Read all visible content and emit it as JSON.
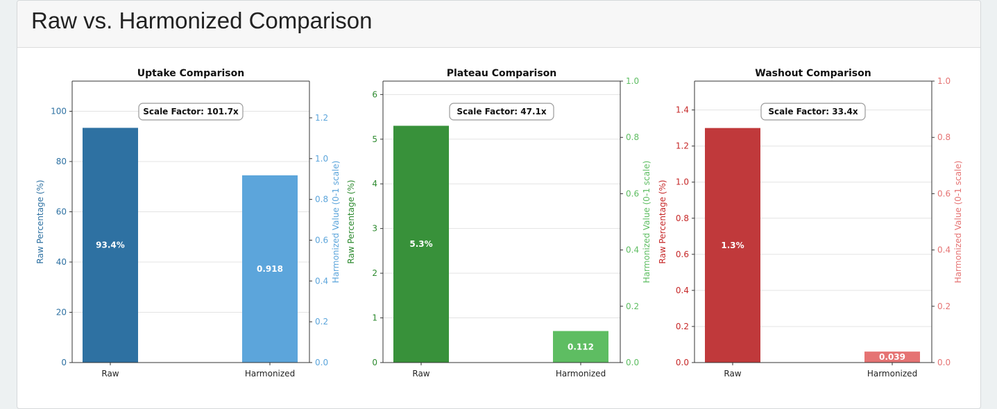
{
  "page": {
    "title": "Raw vs. Harmonized Comparison"
  },
  "chart_data": [
    {
      "type": "bar",
      "title": "Uptake Comparison",
      "categories": [
        "Raw",
        "Harmonized"
      ],
      "ylabel": "Raw Percentage (%)",
      "y2label": "Harmonized Value (0-1 scale)",
      "ylim": [
        0,
        112
      ],
      "y2lim": [
        0,
        1.38
      ],
      "yticks": [
        0,
        20,
        40,
        60,
        80,
        100
      ],
      "y2ticks": [
        0.0,
        0.2,
        0.4,
        0.6,
        0.8,
        1.0,
        1.2
      ],
      "ytick_labels": [
        "0",
        "20",
        "40",
        "60",
        "80",
        "100"
      ],
      "y2tick_labels": [
        "0.0",
        "0.2",
        "0.4",
        "0.6",
        "0.8",
        "1.0",
        "1.2"
      ],
      "raw_value": 93.4,
      "harmonized_value": 0.918,
      "raw_label": "93.4%",
      "harmonized_label": "0.918",
      "annotation": "Scale Factor: 101.7x",
      "grid": true,
      "colors": {
        "raw": "#2e71a2",
        "harmonized": "#5ca5db",
        "raw_axis": "#2e71a2",
        "harmonized_axis": "#5ca5db"
      }
    },
    {
      "type": "bar",
      "title": "Plateau Comparison",
      "categories": [
        "Raw",
        "Harmonized"
      ],
      "ylabel": "Raw Percentage (%)",
      "y2label": "Harmonized Value (0-1 scale)",
      "ylim": [
        0,
        6.3
      ],
      "y2lim": [
        0,
        1.0
      ],
      "yticks": [
        0,
        1,
        2,
        3,
        4,
        5,
        6
      ],
      "y2ticks": [
        0.0,
        0.2,
        0.4,
        0.6,
        0.8,
        1.0
      ],
      "ytick_labels": [
        "0",
        "1",
        "2",
        "3",
        "4",
        "5",
        "6"
      ],
      "y2tick_labels": [
        "0.0",
        "0.2",
        "0.4",
        "0.6",
        "0.8",
        "1.0"
      ],
      "raw_value": 5.3,
      "harmonized_value": 0.112,
      "raw_label": "5.3%",
      "harmonized_label": "0.112",
      "annotation": "Scale Factor: 47.1x",
      "grid": true,
      "colors": {
        "raw": "#38913a",
        "harmonized": "#5ebd62",
        "raw_axis": "#2d8a2f",
        "harmonized_axis": "#5ebd62"
      }
    },
    {
      "type": "bar",
      "title": "Washout Comparison",
      "categories": [
        "Raw",
        "Harmonized"
      ],
      "ylabel": "Raw Percentage (%)",
      "y2label": "Harmonized Value (0-1 scale)",
      "ylim": [
        0,
        1.56
      ],
      "y2lim": [
        0,
        1.0
      ],
      "yticks": [
        0.0,
        0.2,
        0.4,
        0.6,
        0.8,
        1.0,
        1.2,
        1.4
      ],
      "y2ticks": [
        0.0,
        0.2,
        0.4,
        0.6,
        0.8,
        1.0
      ],
      "ytick_labels": [
        "0.0",
        "0.2",
        "0.4",
        "0.6",
        "0.8",
        "1.0",
        "1.2",
        "1.4"
      ],
      "y2tick_labels": [
        "0.0",
        "0.2",
        "0.4",
        "0.6",
        "0.8",
        "1.0"
      ],
      "raw_value": 1.3,
      "harmonized_value": 0.039,
      "raw_label": "1.3%",
      "harmonized_label": "0.039",
      "annotation": "Scale Factor: 33.4x",
      "grid": true,
      "colors": {
        "raw": "#c0393b",
        "harmonized": "#e57373",
        "raw_axis": "#c62828",
        "harmonized_axis": "#e57373"
      }
    }
  ]
}
